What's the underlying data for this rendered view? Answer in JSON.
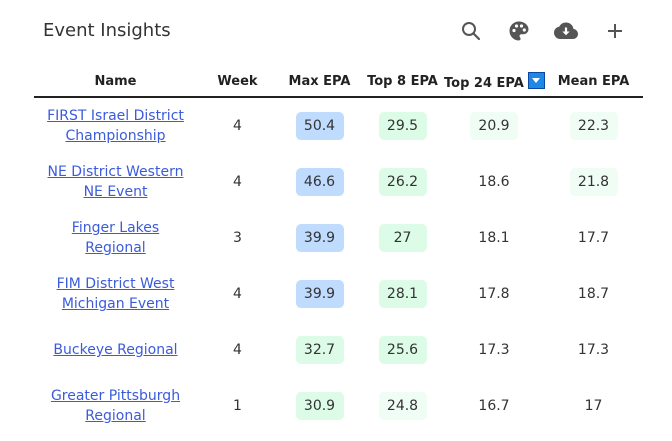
{
  "header": {
    "title": "Event Insights",
    "tools": [
      {
        "name": "search-icon"
      },
      {
        "name": "palette-icon"
      },
      {
        "name": "cloud-download-icon"
      },
      {
        "name": "plus-icon"
      }
    ]
  },
  "table": {
    "columns": [
      "Name",
      "Week",
      "Max EPA",
      "Top 8 EPA",
      "Top 24 EPA",
      "Mean EPA"
    ],
    "sorted_column": "Top 24 EPA",
    "rows": [
      {
        "name": "FIRST Israel District Championship",
        "week": "4",
        "max": "50.4",
        "top8": "29.5",
        "top24": "20.9",
        "mean": "22.3"
      },
      {
        "name": "NE District Western NE Event",
        "week": "4",
        "max": "46.6",
        "top8": "26.2",
        "top24": "18.6",
        "mean": "21.8"
      },
      {
        "name": "Finger Lakes Regional",
        "week": "3",
        "max": "39.9",
        "top8": "27",
        "top24": "18.1",
        "mean": "17.7"
      },
      {
        "name": "FIM District West Michigan Event",
        "week": "4",
        "max": "39.9",
        "top8": "28.1",
        "top24": "17.8",
        "mean": "18.7"
      },
      {
        "name": "Buckeye Regional",
        "week": "4",
        "max": "32.7",
        "top8": "25.6",
        "top24": "17.3",
        "mean": "17.3"
      },
      {
        "name": "Greater Pittsburgh Regional",
        "week": "1",
        "max": "30.9",
        "top8": "24.8",
        "top24": "16.7",
        "mean": "17"
      }
    ],
    "cell_colors": {
      "max": [
        "#bfdbfe",
        "#bfdbfe",
        "#bfdbfe",
        "#bfdbfe",
        "#dcfce7",
        "#dcfce7"
      ],
      "top8": [
        "#dcfce7",
        "#dcfce7",
        "#dcfce7",
        "#dcfce7",
        "#dcfce7",
        "#f0fdf4"
      ],
      "top24": [
        "#f0fdf4",
        "transparent",
        "transparent",
        "transparent",
        "transparent",
        "transparent"
      ],
      "mean": [
        "#f0fdf4",
        "#f0fdf4",
        "transparent",
        "transparent",
        "transparent",
        "transparent"
      ]
    }
  }
}
